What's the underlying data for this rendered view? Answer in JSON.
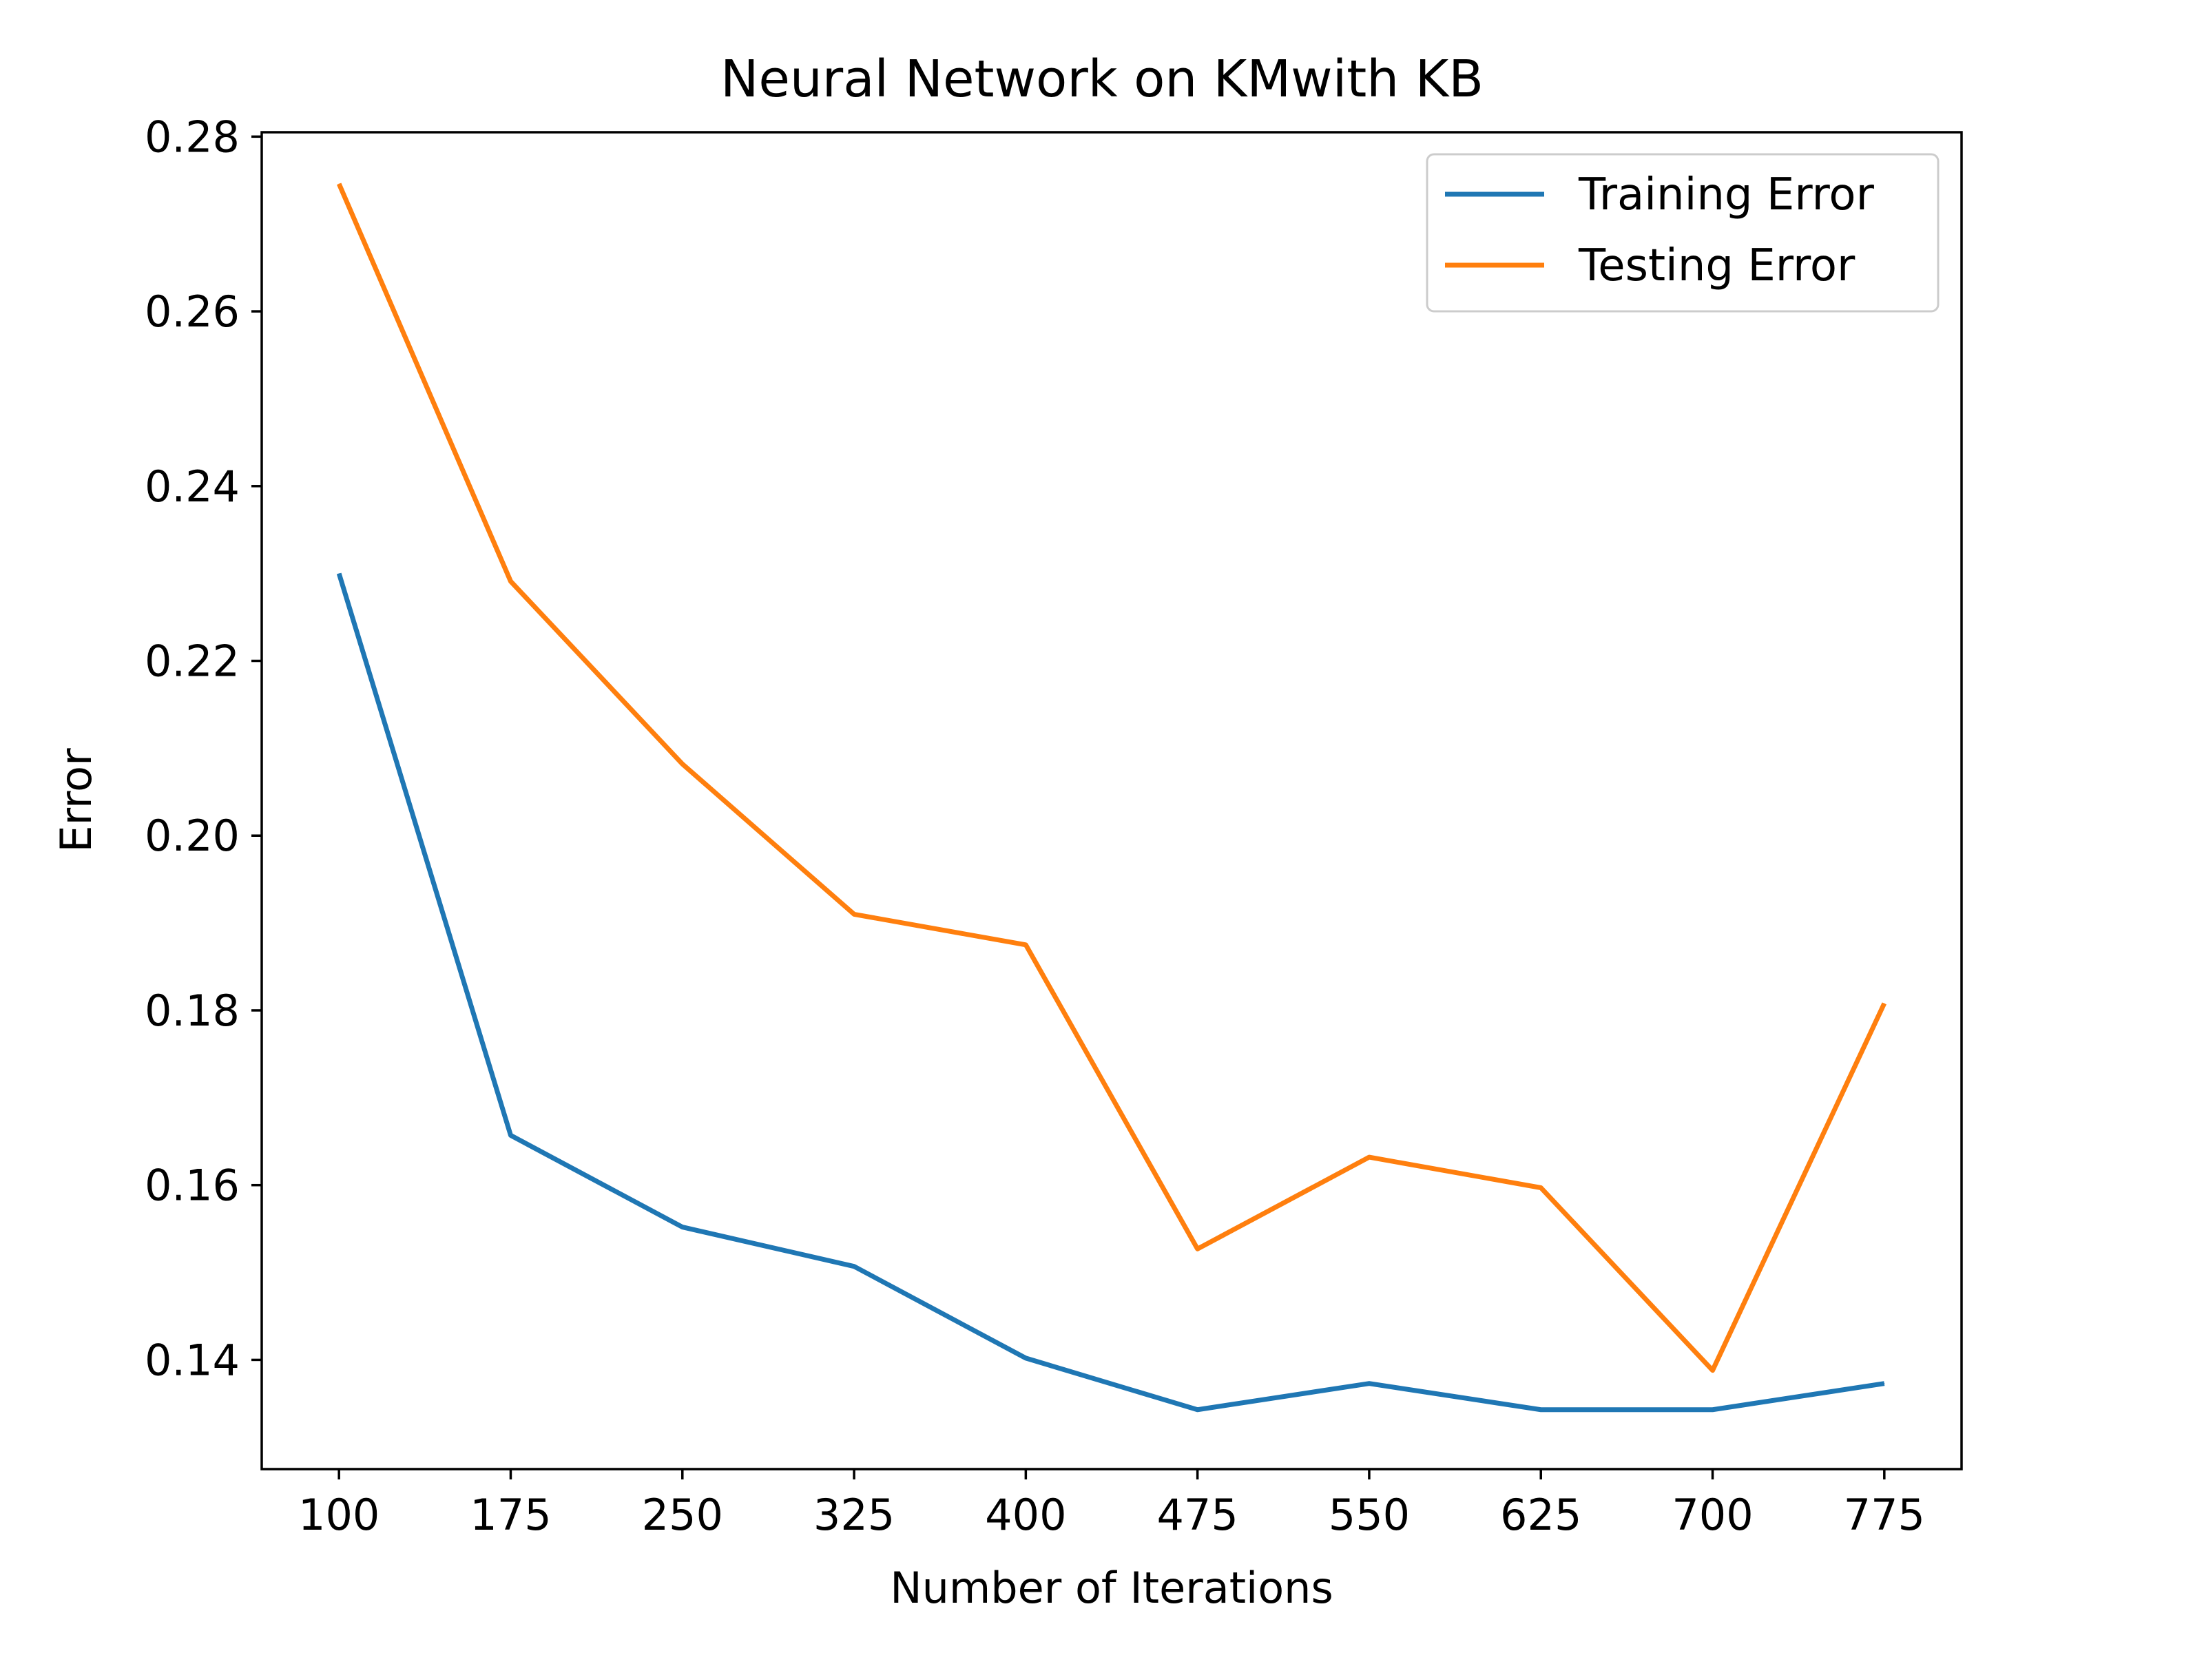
{
  "chart_data": {
    "type": "line",
    "title": "Neural Network on KMwith KB",
    "xlabel": "Number of Iterations",
    "ylabel": "Error",
    "x": [
      100,
      175,
      250,
      325,
      400,
      475,
      550,
      625,
      700,
      775
    ],
    "xticks": [
      "100",
      "175",
      "250",
      "325",
      "400",
      "475",
      "550",
      "625",
      "700",
      "775"
    ],
    "yticks": [
      "0.14",
      "0.16",
      "0.18",
      "0.20",
      "0.22",
      "0.24",
      "0.26",
      "0.28"
    ],
    "ytick_values": [
      0.14,
      0.16,
      0.18,
      0.2,
      0.22,
      0.24,
      0.26,
      0.28
    ],
    "xlim": [
      66.25,
      808.75
    ],
    "ylim": [
      0.1275,
      0.2805
    ],
    "grid": false,
    "legend_position": "top-right",
    "series": [
      {
        "name": "Training Error",
        "color": "#1f77b4",
        "values": [
          0.23,
          0.1657,
          0.1552,
          0.1507,
          0.1402,
          0.1343,
          0.1373,
          0.1343,
          0.1343,
          0.1373
        ]
      },
      {
        "name": "Testing Error",
        "color": "#ff7f0e",
        "values": [
          0.2746,
          0.2291,
          0.2082,
          0.191,
          0.1875,
          0.1527,
          0.1632,
          0.1597,
          0.1388,
          0.1808
        ]
      }
    ]
  }
}
